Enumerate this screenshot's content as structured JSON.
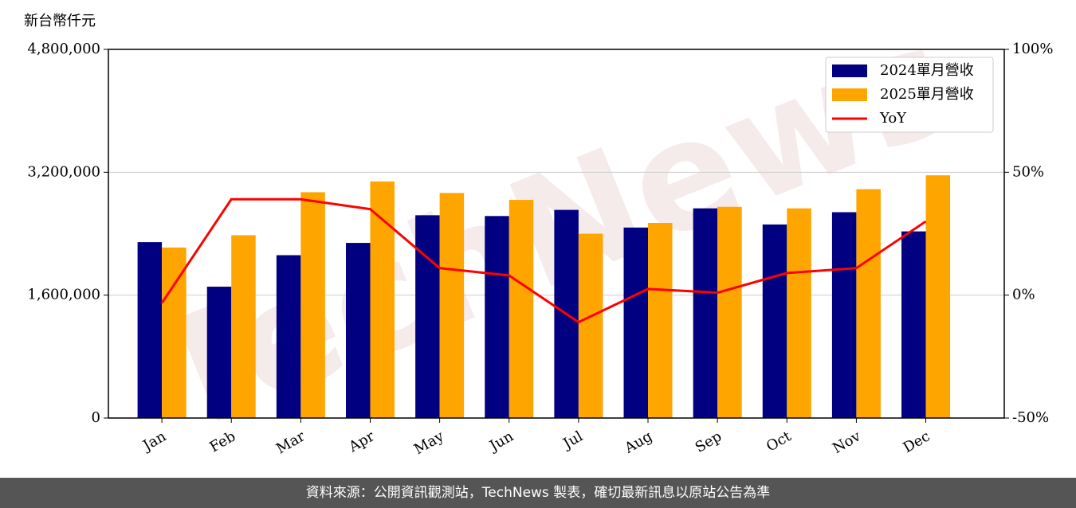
{
  "chart_data": {
    "type": "bar",
    "unit_label": "新台幣仟元",
    "watermark": "TechNews",
    "categories": [
      "Jan",
      "Feb",
      "Mar",
      "Apr",
      "May",
      "Jun",
      "Jul",
      "Aug",
      "Sep",
      "Oct",
      "Nov",
      "Dec"
    ],
    "series": [
      {
        "name": "2024單月營收",
        "color": "#000080",
        "axis": "y",
        "values": [
          2290000,
          1710000,
          2120000,
          2280000,
          2640000,
          2630000,
          2710000,
          2480000,
          2730000,
          2520000,
          2680000,
          2430000
        ]
      },
      {
        "name": "2025單月營收",
        "color": "#ffa500",
        "axis": "y",
        "values": [
          2220000,
          2380000,
          2940000,
          3080000,
          2930000,
          2840000,
          2400000,
          2540000,
          2750000,
          2730000,
          2980000,
          3160000
        ]
      },
      {
        "name": "YoY",
        "color": "#ff0000",
        "axis": "y2",
        "type": "line",
        "values": [
          -3.2,
          39,
          39,
          35,
          11,
          8,
          -11,
          2.5,
          1,
          9,
          11,
          30
        ]
      }
    ],
    "ylim": [
      0,
      4800000
    ],
    "yticks": [
      {
        "value": 0,
        "label": "0"
      },
      {
        "value": 1600000,
        "label": "1,600,000"
      },
      {
        "value": 3200000,
        "label": "3,200,000"
      },
      {
        "value": 4800000,
        "label": "4,800,000"
      }
    ],
    "y2lim": [
      -50,
      100
    ],
    "y2ticks": [
      {
        "value": -50,
        "label": "-50%"
      },
      {
        "value": 0,
        "label": "0%"
      },
      {
        "value": 50,
        "label": "50%"
      },
      {
        "value": 100,
        "label": "100%"
      }
    ],
    "grid": true,
    "legend": "upper right"
  },
  "footer": "資料來源：公開資訊觀測站，TechNews 製表，確切最新訊息以原站公告為準"
}
